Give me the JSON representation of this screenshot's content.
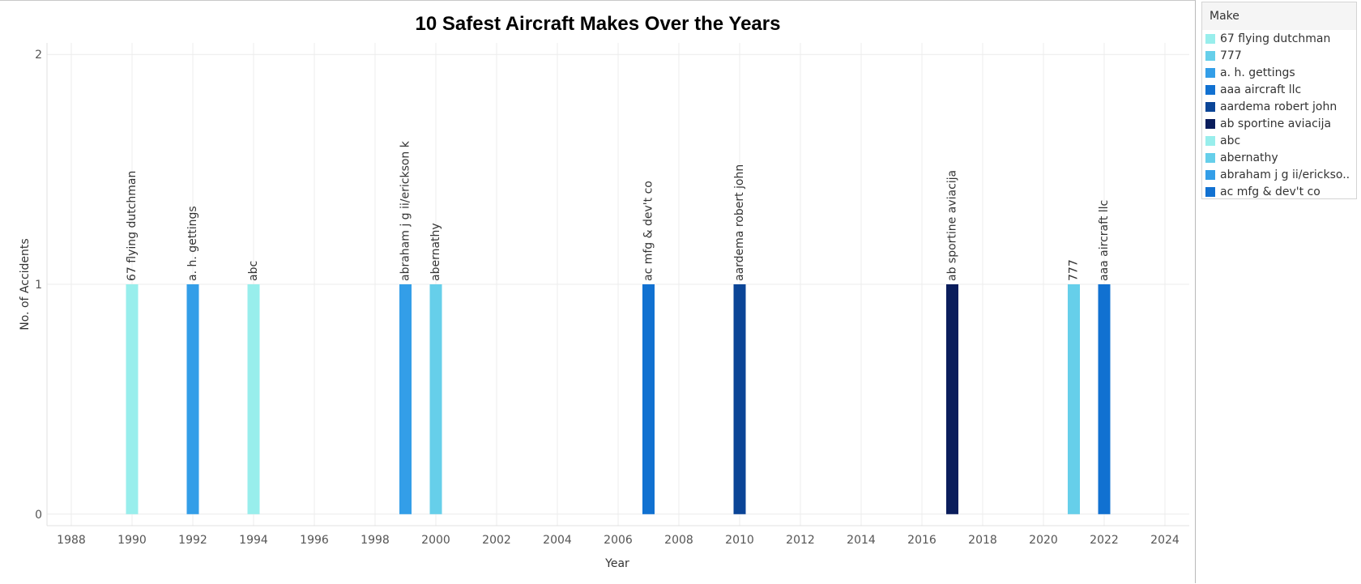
{
  "chart_data": {
    "type": "bar",
    "title": "10 Safest Aircraft Makes Over the Years",
    "xlabel": "Year",
    "ylabel": "No. of Accidents",
    "xlim": [
      1987.2,
      2024.8
    ],
    "ylim": [
      -0.05,
      2.05
    ],
    "xticks": [
      1988,
      1990,
      1992,
      1994,
      1996,
      1998,
      2000,
      2002,
      2004,
      2006,
      2008,
      2010,
      2012,
      2014,
      2016,
      2018,
      2020,
      2022,
      2024
    ],
    "yticks": [
      0,
      1,
      2
    ],
    "grid": true,
    "legend_position": "right",
    "points": [
      {
        "year": 1990,
        "value": 1,
        "make": "67 flying dutchman"
      },
      {
        "year": 1992,
        "value": 1,
        "make": "a. h. gettings"
      },
      {
        "year": 1994,
        "value": 1,
        "make": "abc"
      },
      {
        "year": 1999,
        "value": 1,
        "make": "abraham j g ii/erickson k"
      },
      {
        "year": 2000,
        "value": 1,
        "make": "abernathy"
      },
      {
        "year": 2007,
        "value": 1,
        "make": "ac mfg & dev't co"
      },
      {
        "year": 2010,
        "value": 1,
        "make": "aardema robert john"
      },
      {
        "year": 2017,
        "value": 1,
        "make": "ab sportine aviacija"
      },
      {
        "year": 2021,
        "value": 1,
        "make": "777"
      },
      {
        "year": 2022,
        "value": 1,
        "make": "aaa aircraft llc"
      }
    ]
  },
  "legend": {
    "title": "Make",
    "items": [
      {
        "label": "67 flying dutchman",
        "color": "#98eeec"
      },
      {
        "label": "777",
        "color": "#66cfea"
      },
      {
        "label": "a. h. gettings",
        "color": "#339ee8"
      },
      {
        "label": "aaa aircraft llc",
        "color": "#1171d1"
      },
      {
        "label": "aardema robert john",
        "color": "#0b4597"
      },
      {
        "label": "ab sportine aviacija",
        "color": "#0a1d5c"
      },
      {
        "label": "abc",
        "color": "#98eeec"
      },
      {
        "label": "abernathy",
        "color": "#66cfea"
      },
      {
        "label": "abraham j g ii/erickso..",
        "color": "#339ee8"
      },
      {
        "label": "ac mfg & dev't co",
        "color": "#1171d1"
      }
    ]
  }
}
